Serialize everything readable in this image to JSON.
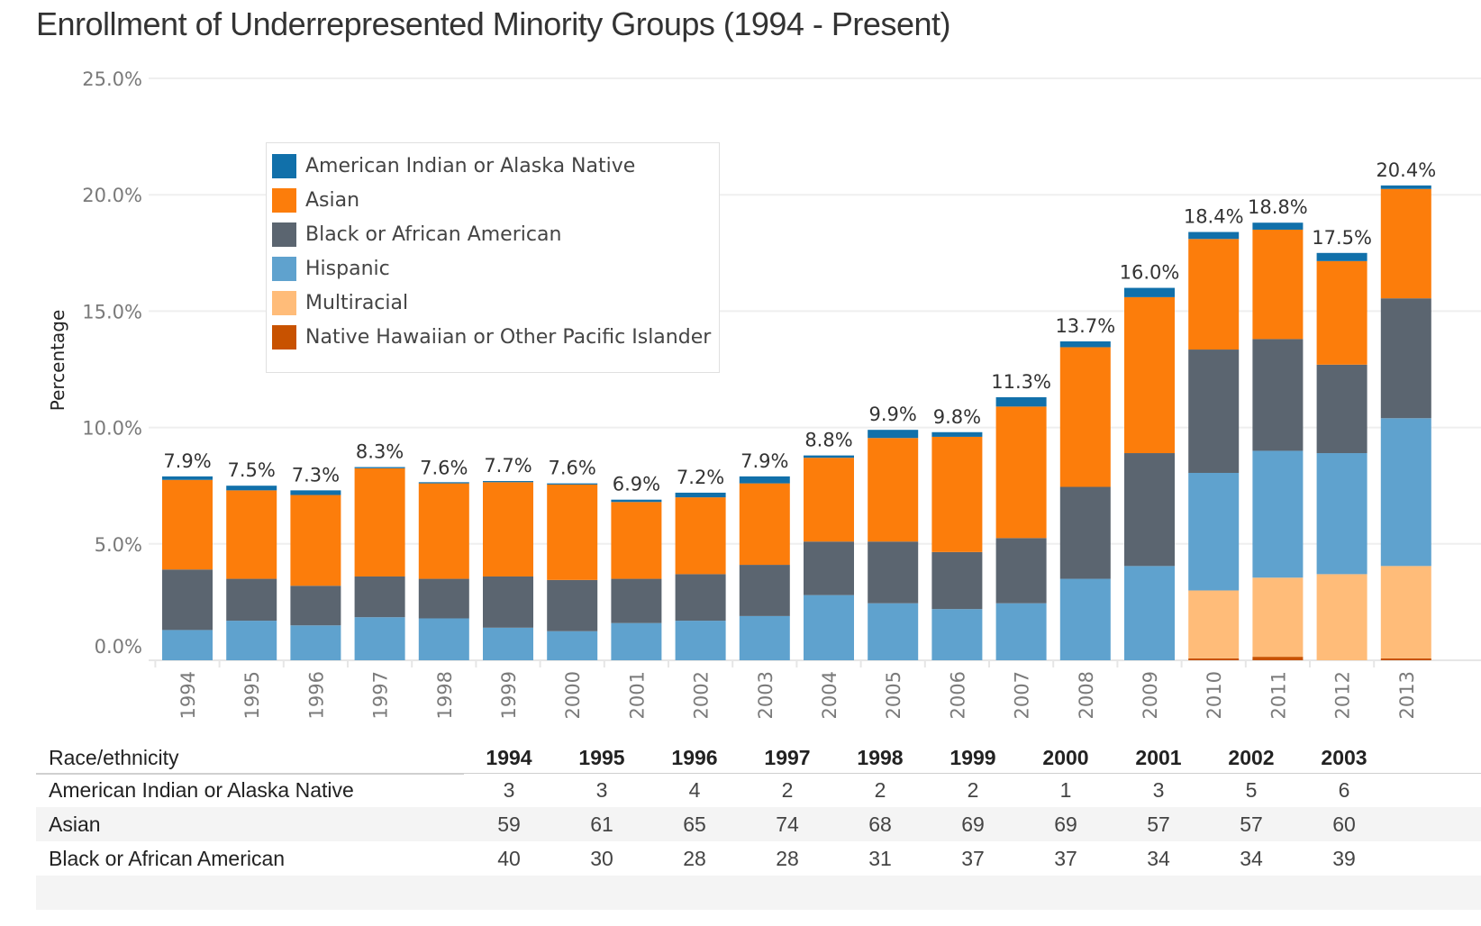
{
  "title": "Enrollment of Underrepresented Minority Groups (1994 - Present)",
  "chart_data": {
    "type": "bar",
    "stacked": true,
    "title": "Enrollment of Underrepresented Minority Groups (1994 - Present)",
    "xlabel": "",
    "ylabel": "Percentage",
    "ylim": [
      0,
      25
    ],
    "yticks": [
      "0.0%",
      "5.0%",
      "10.0%",
      "15.0%",
      "20.0%",
      "25.0%"
    ],
    "ytick_values": [
      0,
      5,
      10,
      15,
      20,
      25
    ],
    "grid": true,
    "legend_position": "top-left",
    "categories": [
      "1994",
      "1995",
      "1996",
      "1997",
      "1998",
      "1999",
      "2000",
      "2001",
      "2002",
      "2003",
      "2004",
      "2005",
      "2006",
      "2007",
      "2008",
      "2009",
      "2010",
      "2011",
      "2012",
      "2013"
    ],
    "stack_order": [
      "Native Hawaiian or Other Pacific Islander",
      "Multiracial",
      "Hispanic",
      "Black or African American",
      "Asian",
      "American Indian or Alaska Native"
    ],
    "series": [
      {
        "name": "American Indian or Alaska Native",
        "color": "#1170aa",
        "values": [
          0.15,
          0.2,
          0.2,
          0.05,
          0.05,
          0.05,
          0.05,
          0.1,
          0.2,
          0.3,
          0.1,
          0.35,
          0.2,
          0.4,
          0.25,
          0.4,
          0.3,
          0.3,
          0.35,
          0.15
        ]
      },
      {
        "name": "Asian",
        "color": "#fc7d0b",
        "values": [
          3.85,
          3.8,
          3.9,
          4.65,
          4.1,
          4.05,
          4.1,
          3.3,
          3.3,
          3.5,
          3.6,
          4.45,
          4.95,
          5.65,
          6.0,
          6.7,
          4.75,
          4.7,
          4.45,
          4.7
        ]
      },
      {
        "name": "Black or African American",
        "color": "#5b6570",
        "values": [
          2.6,
          1.8,
          1.7,
          1.75,
          1.7,
          2.2,
          2.2,
          1.9,
          2.0,
          2.2,
          2.3,
          2.65,
          2.45,
          2.8,
          3.95,
          4.85,
          5.3,
          4.8,
          3.8,
          5.15
        ]
      },
      {
        "name": "Hispanic",
        "color": "#5fa2ce",
        "values": [
          1.3,
          1.7,
          1.5,
          1.85,
          1.8,
          1.4,
          1.25,
          1.6,
          1.7,
          1.9,
          2.8,
          2.45,
          2.2,
          2.45,
          3.5,
          4.05,
          5.05,
          5.45,
          5.2,
          6.35
        ]
      },
      {
        "name": "Multiracial",
        "color": "#ffbc79",
        "values": [
          0,
          0,
          0,
          0,
          0,
          0,
          0,
          0,
          0,
          0,
          0,
          0,
          0,
          0,
          0,
          0,
          2.92,
          3.4,
          3.7,
          3.97
        ]
      },
      {
        "name": "Native Hawaiian or Other Pacific Islander",
        "color": "#c85200",
        "values": [
          0,
          0,
          0,
          0,
          0,
          0,
          0,
          0,
          0,
          0,
          0,
          0,
          0,
          0,
          0,
          0,
          0.08,
          0.15,
          0,
          0.08
        ]
      }
    ],
    "totals": [
      7.9,
      7.5,
      7.3,
      8.3,
      7.6,
      7.7,
      7.6,
      6.9,
      7.2,
      7.9,
      8.8,
      9.9,
      9.8,
      11.3,
      13.7,
      16.0,
      18.4,
      18.8,
      17.5,
      20.4
    ],
    "data_labels": [
      "7.9%",
      "7.5%",
      "7.3%",
      "8.3%",
      "7.6%",
      "7.7%",
      "7.6%",
      "6.9%",
      "7.2%",
      "7.9%",
      "8.8%",
      "9.9%",
      "9.8%",
      "11.3%",
      "13.7%",
      "16.0%",
      "18.4%",
      "18.8%",
      "17.5%",
      "20.4%"
    ]
  },
  "legend": [
    {
      "label": "American Indian or Alaska Native",
      "color": "#1170aa"
    },
    {
      "label": "Asian",
      "color": "#fc7d0b"
    },
    {
      "label": "Black or African American",
      "color": "#5b6570"
    },
    {
      "label": "Hispanic",
      "color": "#5fa2ce"
    },
    {
      "label": "Multiracial",
      "color": "#ffbc79"
    },
    {
      "label": "Native Hawaiian or Other Pacific Islander",
      "color": "#c85200"
    }
  ],
  "table": {
    "header_label": "Race/ethnicity",
    "years": [
      "1994",
      "1995",
      "1996",
      "1997",
      "1998",
      "1999",
      "2000",
      "2001",
      "2002",
      "2003"
    ],
    "rows": [
      {
        "label": "American Indian or Alaska Native",
        "values": [
          "3",
          "3",
          "4",
          "2",
          "2",
          "2",
          "1",
          "3",
          "5",
          "6"
        ]
      },
      {
        "label": "Asian",
        "values": [
          "59",
          "61",
          "65",
          "74",
          "68",
          "69",
          "69",
          "57",
          "57",
          "60"
        ]
      },
      {
        "label": "Black or African American",
        "values": [
          "40",
          "30",
          "28",
          "28",
          "31",
          "37",
          "37",
          "34",
          "34",
          "39"
        ]
      }
    ]
  }
}
